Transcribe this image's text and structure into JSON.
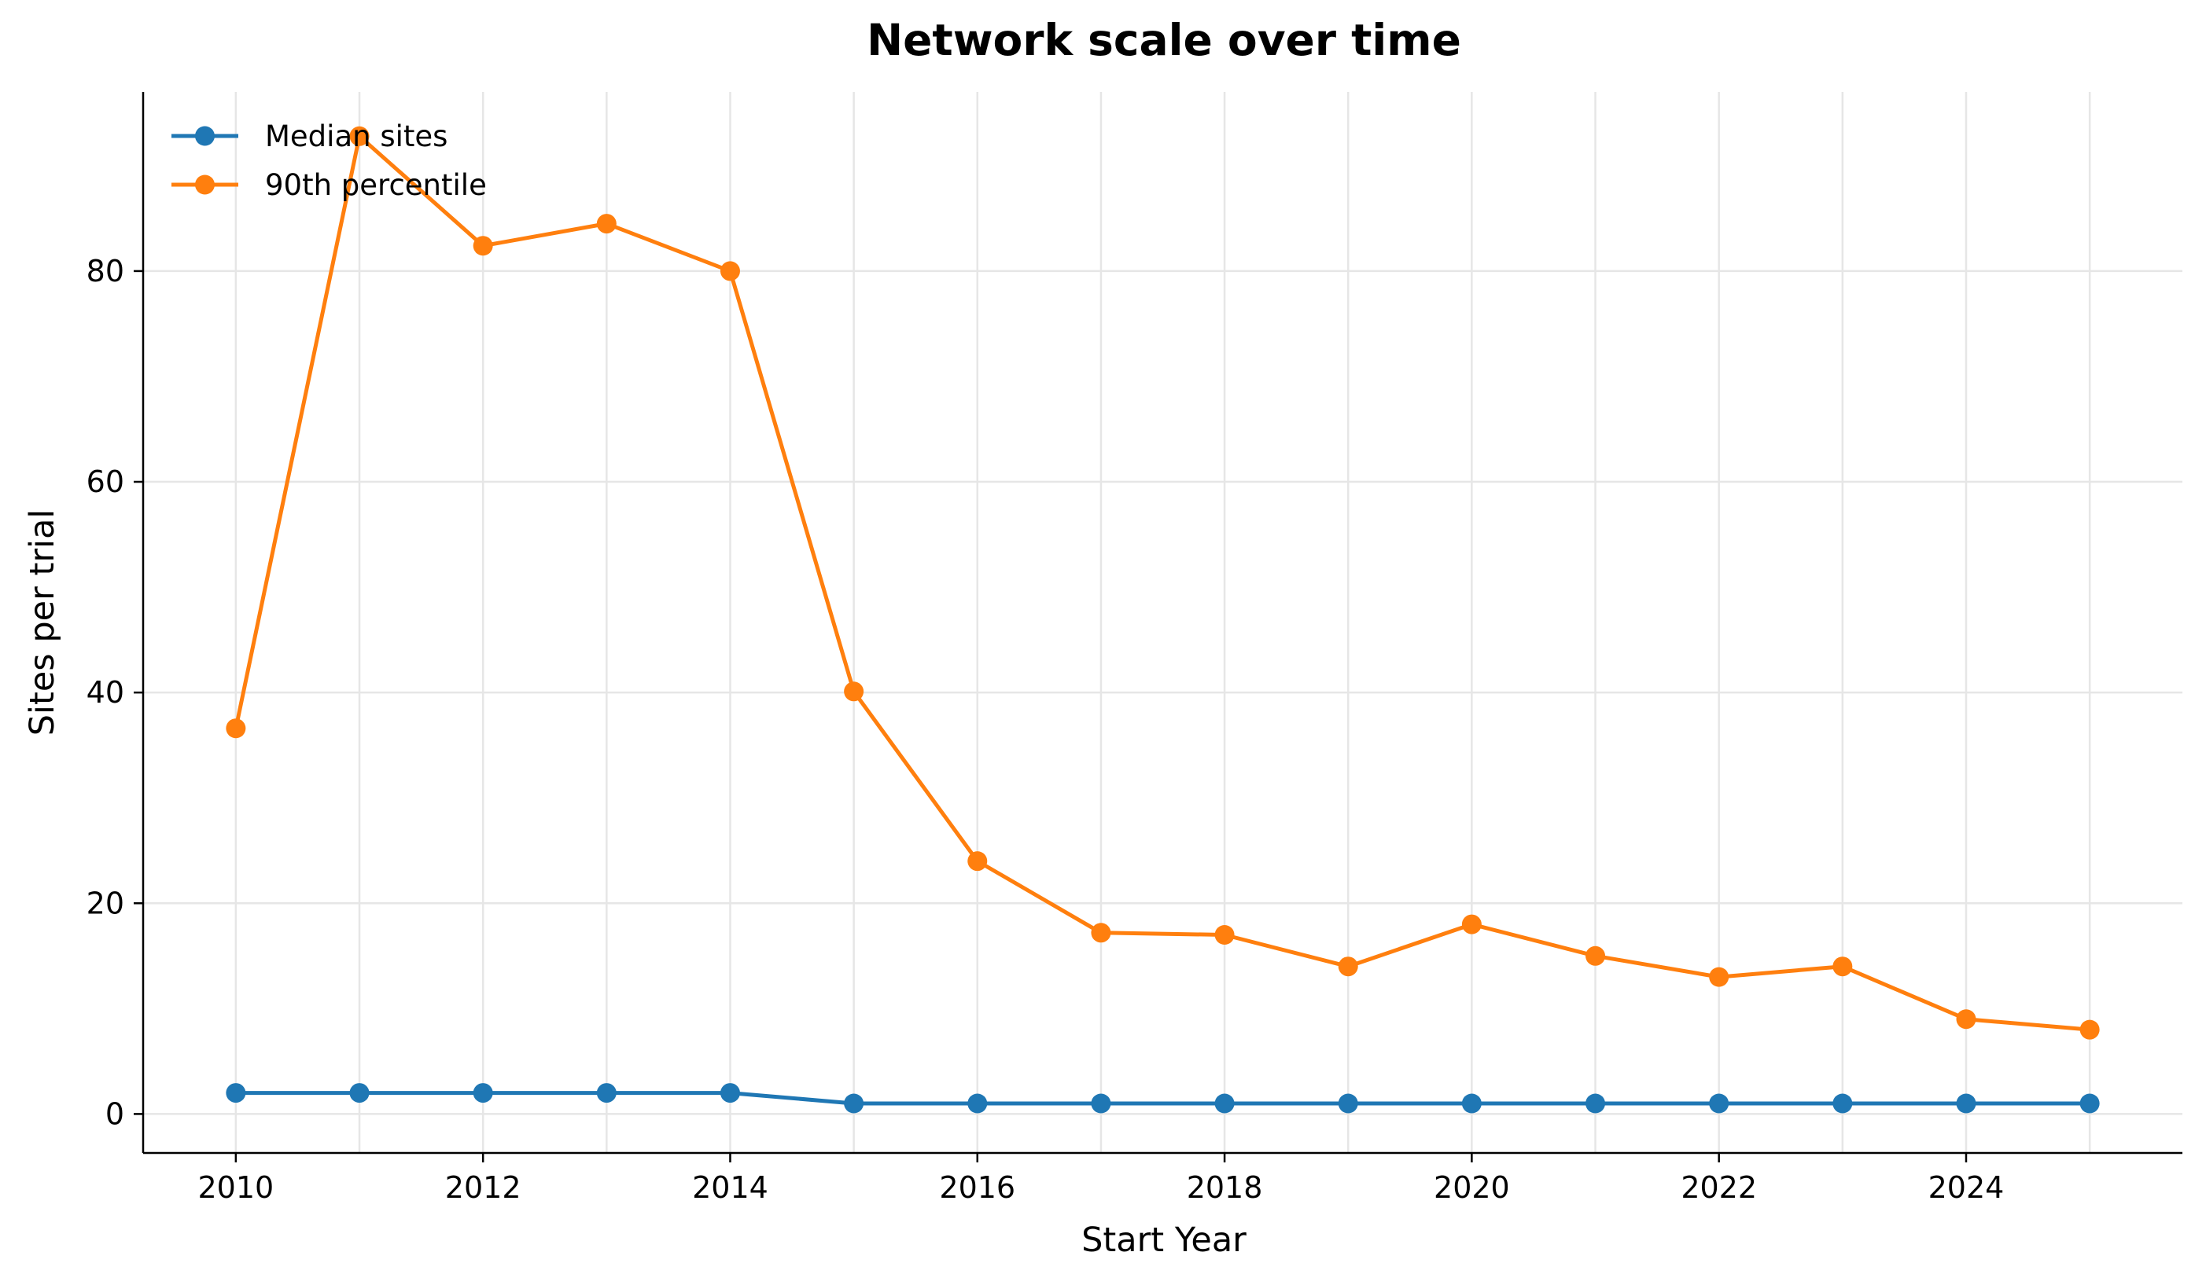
{
  "chart_data": {
    "type": "line",
    "title": "Network scale over time",
    "xlabel": "Start Year",
    "ylabel": "Sites per trial",
    "x": [
      2010,
      2011,
      2012,
      2013,
      2014,
      2015,
      2016,
      2017,
      2018,
      2019,
      2020,
      2021,
      2022,
      2023,
      2024,
      2025
    ],
    "xlim": [
      2009.25,
      2025.75
    ],
    "ylim": [
      -3.7,
      97
    ],
    "xticks": [
      2010,
      2012,
      2014,
      2016,
      2018,
      2020,
      2022,
      2024
    ],
    "yticks": [
      0,
      20,
      40,
      60,
      80
    ],
    "grid": true,
    "legend_position": "top-left",
    "series": [
      {
        "name": "Median sites",
        "color": "#1f77b4",
        "values": [
          2,
          2,
          2,
          2,
          2,
          1,
          1,
          1,
          1,
          1,
          1,
          1,
          1,
          1,
          1,
          1
        ]
      },
      {
        "name": "90th percentile",
        "color": "#ff7f0e",
        "values": [
          36.6,
          92.8,
          82.4,
          84.5,
          80,
          40.1,
          24,
          17.2,
          17,
          14,
          18,
          15,
          13,
          14,
          9,
          8
        ]
      }
    ]
  }
}
